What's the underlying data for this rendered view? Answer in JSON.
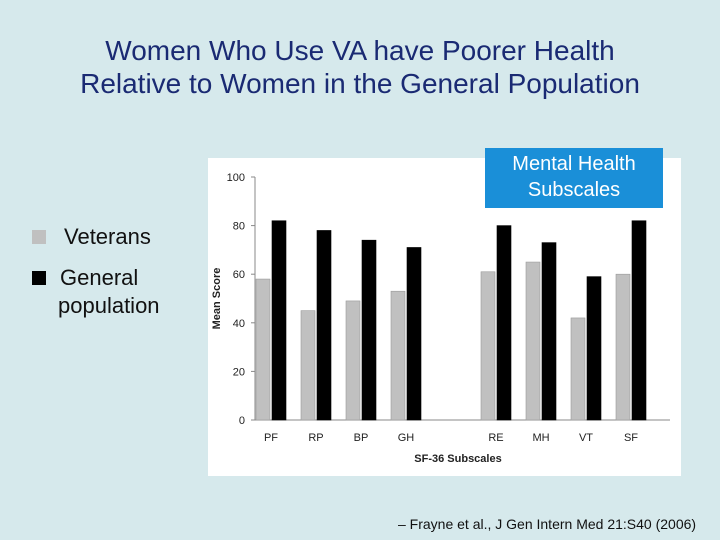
{
  "slide": {
    "title_line1": "Women Who Use VA have Poorer Health",
    "title_line2": "Relative to Women in the General Population",
    "callout_line1": "Mental Health",
    "callout_line2": "Subscales",
    "citation": "– Frayne et al., J Gen Intern Med 21:S40 (2006)"
  },
  "legend": {
    "veterans": "Veterans",
    "general_line1": "General",
    "general_line2": "population"
  },
  "colors": {
    "veterans": "#c0c0c0",
    "general": "#000000",
    "title": "#1a2a73",
    "callout": "#1a8fd8"
  },
  "chart_data": {
    "type": "bar",
    "categories": [
      "PF",
      "RP",
      "BP",
      "GH",
      "RE",
      "MH",
      "VT",
      "SF"
    ],
    "series": [
      {
        "name": "Veterans",
        "values": [
          58,
          45,
          49,
          53,
          61,
          65,
          42,
          60
        ]
      },
      {
        "name": "General population",
        "values": [
          82,
          78,
          74,
          71,
          80,
          73,
          59,
          82
        ]
      }
    ],
    "title": "",
    "xlabel": "SF-36 Subscales",
    "ylabel": "Mean Score",
    "ylim": [
      0,
      100
    ],
    "yticks": [
      "0",
      "20",
      "40",
      "60",
      "80",
      "100"
    ]
  }
}
